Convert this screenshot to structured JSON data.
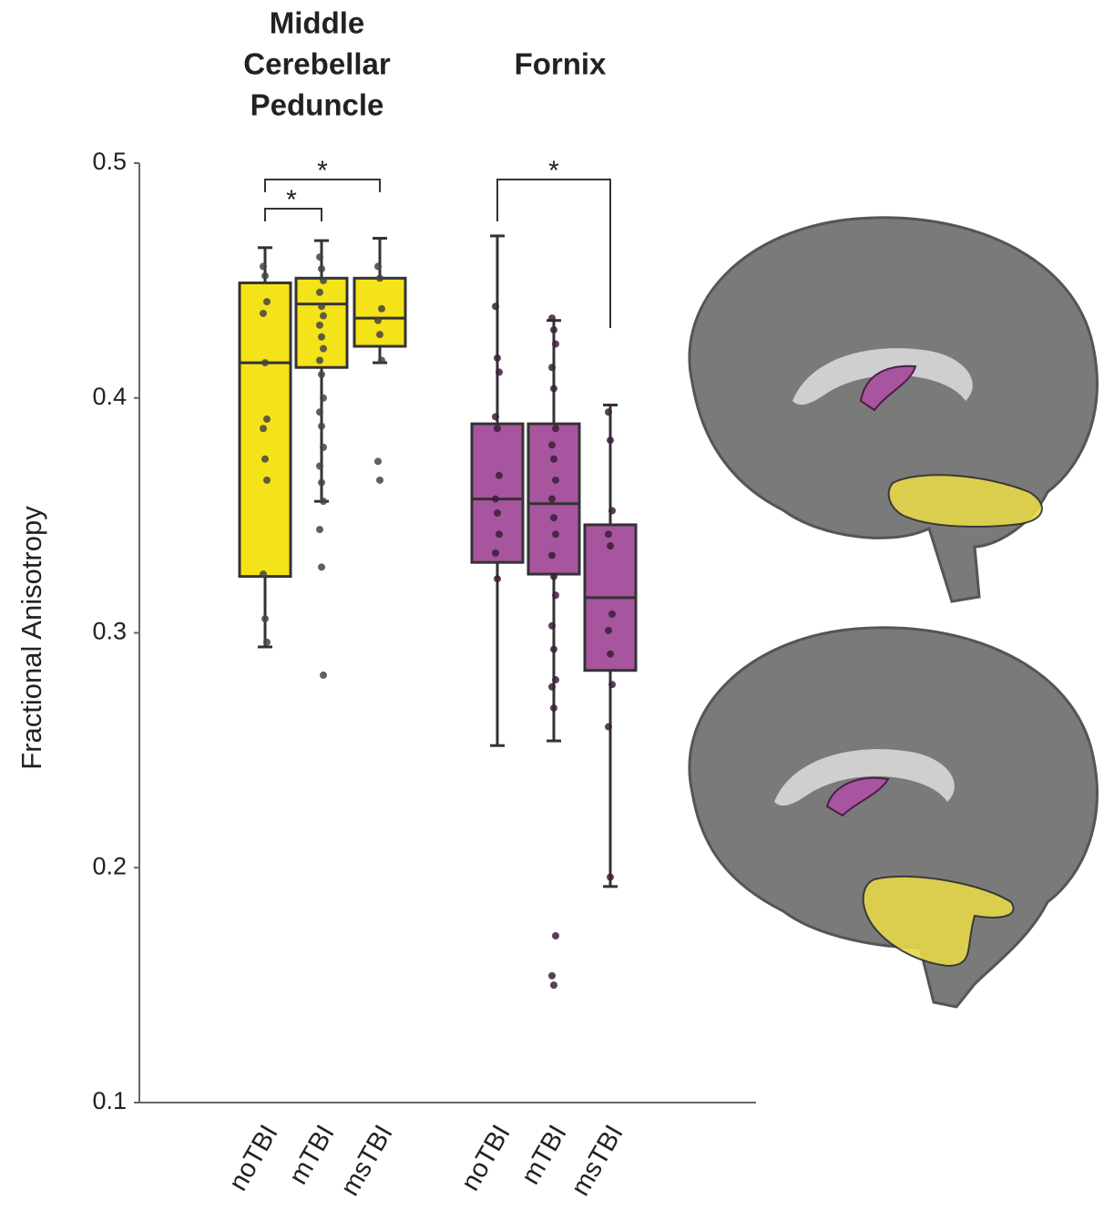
{
  "chart_data": {
    "type": "box",
    "ylabel": "Fractional Anisotropy",
    "ylim": [
      0.1,
      0.5
    ],
    "yticks": [
      0.1,
      0.2,
      0.3,
      0.4,
      0.5
    ],
    "annotations": [
      "*",
      "*",
      "*"
    ],
    "groups": [
      {
        "title": [
          "Middle",
          "Cerebellar",
          "Peduncle"
        ],
        "color": "#f5e31a",
        "categories": [
          "noTBI",
          "mTBI",
          "msTBI"
        ],
        "boxes": [
          {
            "whisker_low": 0.294,
            "q1": 0.324,
            "median": 0.415,
            "q3": 0.449,
            "whisker_high": 0.464,
            "points": [
              0.456,
              0.452,
              0.441,
              0.436,
              0.415,
              0.391,
              0.387,
              0.374,
              0.365,
              0.325,
              0.306,
              0.296
            ]
          },
          {
            "whisker_low": 0.356,
            "q1": 0.413,
            "median": 0.44,
            "q3": 0.451,
            "whisker_high": 0.467,
            "points": [
              0.46,
              0.455,
              0.45,
              0.445,
              0.439,
              0.435,
              0.431,
              0.426,
              0.421,
              0.416,
              0.41,
              0.4,
              0.394,
              0.388,
              0.379,
              0.371,
              0.364,
              0.356,
              0.344,
              0.328,
              0.282
            ]
          },
          {
            "whisker_low": 0.415,
            "q1": 0.422,
            "median": 0.434,
            "q3": 0.451,
            "whisker_high": 0.468,
            "points": [
              0.456,
              0.451,
              0.438,
              0.433,
              0.427,
              0.416,
              0.373,
              0.365
            ]
          }
        ]
      },
      {
        "title": [
          "Fornix"
        ],
        "color": "#a855a0",
        "categories": [
          "noTBI",
          "mTBI",
          "msTBI"
        ],
        "boxes": [
          {
            "whisker_low": 0.252,
            "q1": 0.33,
            "median": 0.357,
            "q3": 0.389,
            "whisker_high": 0.469,
            "points": [
              0.439,
              0.417,
              0.411,
              0.392,
              0.387,
              0.367,
              0.357,
              0.351,
              0.342,
              0.334,
              0.323
            ]
          },
          {
            "whisker_low": 0.254,
            "q1": 0.325,
            "median": 0.355,
            "q3": 0.389,
            "whisker_high": 0.433,
            "points": [
              0.434,
              0.429,
              0.423,
              0.413,
              0.404,
              0.387,
              0.38,
              0.374,
              0.365,
              0.357,
              0.349,
              0.342,
              0.333,
              0.324,
              0.316,
              0.303,
              0.293,
              0.28,
              0.277,
              0.268,
              0.171,
              0.154,
              0.15
            ]
          },
          {
            "whisker_low": 0.192,
            "q1": 0.284,
            "median": 0.315,
            "q3": 0.346,
            "whisker_high": 0.397,
            "points": [
              0.394,
              0.382,
              0.352,
              0.342,
              0.337,
              0.308,
              0.301,
              0.291,
              0.278,
              0.26,
              0.196
            ]
          }
        ]
      }
    ]
  }
}
